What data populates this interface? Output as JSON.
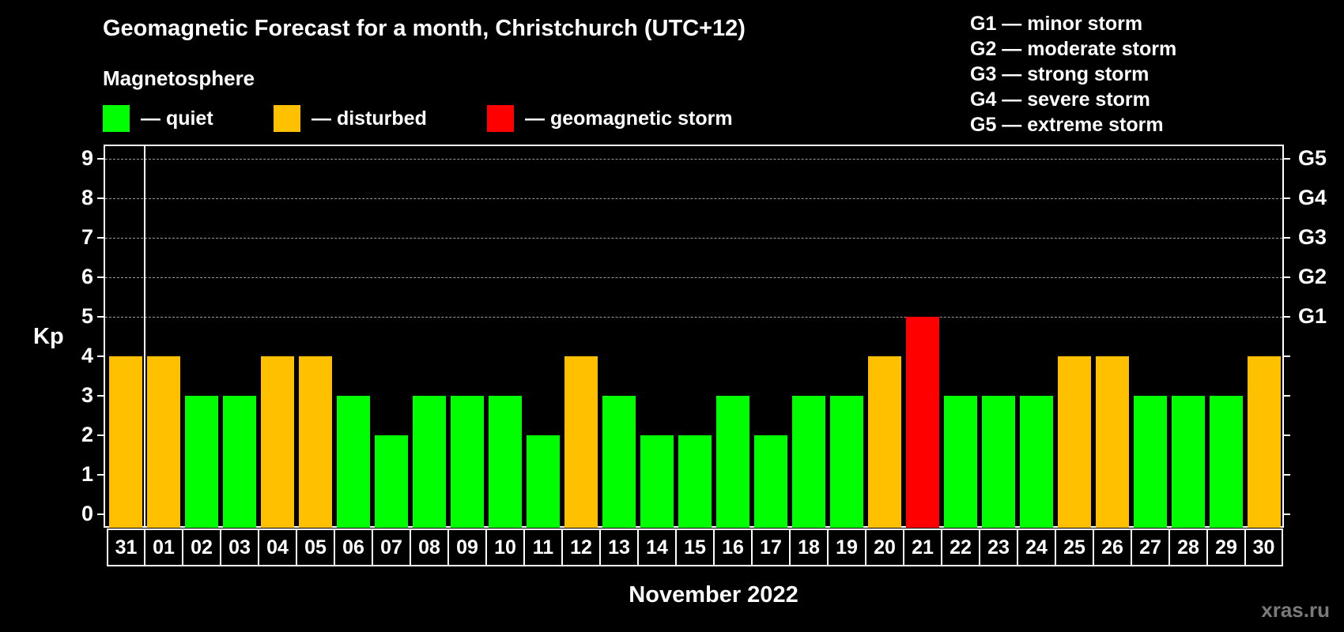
{
  "header": {
    "title": "Geomagnetic Forecast for a month, Christchurch (UTC+12)",
    "subtitle": "Magnetosphere",
    "legend": [
      {
        "label": "— quiet",
        "color": "#00ff00"
      },
      {
        "label": "— disturbed",
        "color": "#ffc000"
      },
      {
        "label": "— geomagnetic storm",
        "color": "#ff0000"
      }
    ],
    "storm_scale": [
      "G1 — minor storm",
      "G2 — moderate storm",
      "G3 — strong storm",
      "G4 — severe storm",
      "G5 — extreme storm"
    ]
  },
  "axes": {
    "y_label": "Kp",
    "y_ticks": [
      "0",
      "1",
      "2",
      "3",
      "4",
      "5",
      "6",
      "7",
      "8",
      "9"
    ],
    "right_ticks": [
      "G1",
      "G2",
      "G3",
      "G4",
      "G5"
    ],
    "x_label": "November 2022"
  },
  "watermark": "xras.ru",
  "colors": {
    "quiet": "#00ff00",
    "disturbed": "#ffc000",
    "storm": "#ff0000"
  },
  "chart_data": {
    "type": "bar",
    "title": "Geomagnetic Forecast for a month, Christchurch (UTC+12)",
    "xlabel": "November 2022",
    "ylabel": "Kp",
    "ylim": [
      0,
      9
    ],
    "grid": "dashed horizontal lines at Kp 5-9",
    "right_axis_labels": {
      "5": "G1",
      "6": "G2",
      "7": "G3",
      "8": "G4",
      "9": "G5"
    },
    "categories": [
      "31",
      "01",
      "02",
      "03",
      "04",
      "05",
      "06",
      "07",
      "08",
      "09",
      "10",
      "11",
      "12",
      "13",
      "14",
      "15",
      "16",
      "17",
      "18",
      "19",
      "20",
      "21",
      "22",
      "23",
      "24",
      "25",
      "26",
      "27",
      "28",
      "29",
      "30"
    ],
    "values": [
      4,
      4,
      3,
      3,
      4,
      4,
      3,
      2,
      3,
      3,
      3,
      2,
      4,
      3,
      2,
      2,
      3,
      2,
      3,
      3,
      4,
      5,
      3,
      3,
      3,
      4,
      4,
      3,
      3,
      3,
      4
    ],
    "status": [
      "disturbed",
      "disturbed",
      "quiet",
      "quiet",
      "disturbed",
      "disturbed",
      "quiet",
      "quiet",
      "quiet",
      "quiet",
      "quiet",
      "quiet",
      "disturbed",
      "quiet",
      "quiet",
      "quiet",
      "quiet",
      "quiet",
      "quiet",
      "quiet",
      "disturbed",
      "storm",
      "quiet",
      "quiet",
      "quiet",
      "disturbed",
      "disturbed",
      "quiet",
      "quiet",
      "quiet",
      "disturbed"
    ],
    "legend": [
      "quiet",
      "disturbed",
      "geomagnetic storm"
    ]
  }
}
